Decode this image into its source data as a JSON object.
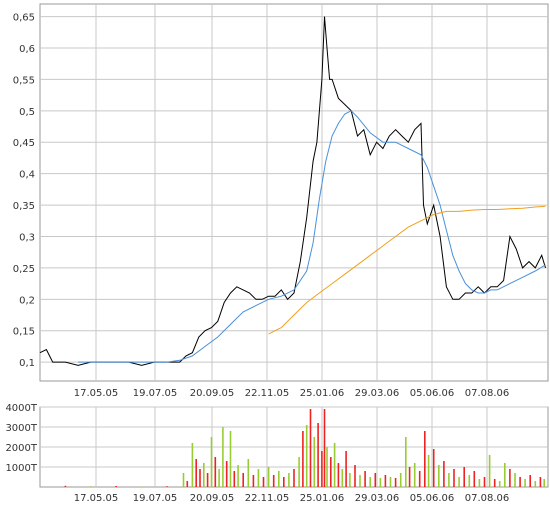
{
  "chart_data": [
    {
      "type": "line",
      "title": "",
      "xlabel": "",
      "ylabel": "",
      "ylim": [
        0.07,
        0.67
      ],
      "y_ticks": [
        "0,1",
        "0,15",
        "0,2",
        "0,25",
        "0,3",
        "0,35",
        "0,4",
        "0,45",
        "0,5",
        "0,55",
        "0,6",
        "0,65"
      ],
      "x_tick_labels": [
        "17.05.05",
        "19.07.05",
        "20.09.05",
        "22.11.05",
        "25.01.06",
        "29.03.06",
        "05.06.06",
        "07.08.06"
      ],
      "grid": true,
      "colors": {
        "price": "#000000",
        "short_ma": "#4a90d9",
        "long_ma": "#f0a020",
        "grid": "#c8c8c8"
      },
      "series": [
        {
          "name": "",
          "color": "#000000",
          "points": [
            [
              0,
              0.115
            ],
            [
              5,
              0.12
            ],
            [
              10,
              0.1
            ],
            [
              20,
              0.1
            ],
            [
              30,
              0.095
            ],
            [
              40,
              0.1
            ],
            [
              50,
              0.1
            ],
            [
              60,
              0.1
            ],
            [
              70,
              0.1
            ],
            [
              80,
              0.095
            ],
            [
              90,
              0.1
            ],
            [
              100,
              0.1
            ],
            [
              110,
              0.1
            ],
            [
              115,
              0.11
            ],
            [
              120,
              0.115
            ],
            [
              125,
              0.14
            ],
            [
              130,
              0.15
            ],
            [
              135,
              0.155
            ],
            [
              140,
              0.165
            ],
            [
              145,
              0.195
            ],
            [
              150,
              0.21
            ],
            [
              155,
              0.22
            ],
            [
              160,
              0.215
            ],
            [
              165,
              0.21
            ],
            [
              170,
              0.2
            ],
            [
              175,
              0.2
            ],
            [
              180,
              0.205
            ],
            [
              185,
              0.205
            ],
            [
              190,
              0.215
            ],
            [
              195,
              0.2
            ],
            [
              200,
              0.21
            ],
            [
              205,
              0.26
            ],
            [
              210,
              0.33
            ],
            [
              215,
              0.42
            ],
            [
              218,
              0.45
            ],
            [
              220,
              0.5
            ],
            [
              222,
              0.55
            ],
            [
              224,
              0.65
            ],
            [
              226,
              0.6
            ],
            [
              228,
              0.55
            ],
            [
              230,
              0.55
            ],
            [
              235,
              0.52
            ],
            [
              240,
              0.51
            ],
            [
              245,
              0.5
            ],
            [
              250,
              0.46
            ],
            [
              255,
              0.47
            ],
            [
              260,
              0.43
            ],
            [
              265,
              0.45
            ],
            [
              270,
              0.44
            ],
            [
              275,
              0.46
            ],
            [
              280,
              0.47
            ],
            [
              285,
              0.46
            ],
            [
              290,
              0.45
            ],
            [
              295,
              0.47
            ],
            [
              300,
              0.48
            ],
            [
              302,
              0.35
            ],
            [
              305,
              0.32
            ],
            [
              310,
              0.35
            ],
            [
              315,
              0.3
            ],
            [
              320,
              0.22
            ],
            [
              325,
              0.2
            ],
            [
              330,
              0.2
            ],
            [
              335,
              0.21
            ],
            [
              340,
              0.21
            ],
            [
              345,
              0.22
            ],
            [
              350,
              0.21
            ],
            [
              355,
              0.22
            ],
            [
              360,
              0.22
            ],
            [
              365,
              0.23
            ],
            [
              370,
              0.3
            ],
            [
              375,
              0.28
            ],
            [
              380,
              0.25
            ],
            [
              385,
              0.26
            ],
            [
              390,
              0.25
            ],
            [
              395,
              0.27
            ],
            [
              398,
              0.25
            ]
          ]
        },
        {
          "name": "",
          "color": "#4a90d9",
          "points": [
            [
              30,
              0.1
            ],
            [
              60,
              0.1
            ],
            [
              100,
              0.1
            ],
            [
              110,
              0.103
            ],
            [
              120,
              0.11
            ],
            [
              130,
              0.125
            ],
            [
              140,
              0.14
            ],
            [
              150,
              0.16
            ],
            [
              160,
              0.18
            ],
            [
              170,
              0.19
            ],
            [
              180,
              0.2
            ],
            [
              190,
              0.205
            ],
            [
              200,
              0.215
            ],
            [
              210,
              0.245
            ],
            [
              215,
              0.29
            ],
            [
              220,
              0.36
            ],
            [
              225,
              0.42
            ],
            [
              230,
              0.46
            ],
            [
              235,
              0.48
            ],
            [
              240,
              0.495
            ],
            [
              245,
              0.5
            ],
            [
              250,
              0.49
            ],
            [
              260,
              0.465
            ],
            [
              270,
              0.45
            ],
            [
              280,
              0.45
            ],
            [
              290,
              0.44
            ],
            [
              300,
              0.43
            ],
            [
              305,
              0.41
            ],
            [
              310,
              0.38
            ],
            [
              315,
              0.35
            ],
            [
              320,
              0.31
            ],
            [
              325,
              0.27
            ],
            [
              330,
              0.245
            ],
            [
              335,
              0.225
            ],
            [
              340,
              0.215
            ],
            [
              345,
              0.21
            ],
            [
              350,
              0.21
            ],
            [
              355,
              0.215
            ],
            [
              360,
              0.215
            ],
            [
              370,
              0.225
            ],
            [
              380,
              0.235
            ],
            [
              390,
              0.245
            ],
            [
              398,
              0.255
            ]
          ]
        },
        {
          "name": "",
          "color": "#f0a020",
          "points": [
            [
              180,
              0.145
            ],
            [
              190,
              0.155
            ],
            [
              200,
              0.175
            ],
            [
              210,
              0.195
            ],
            [
              220,
              0.21
            ],
            [
              230,
              0.225
            ],
            [
              240,
              0.24
            ],
            [
              250,
              0.255
            ],
            [
              260,
              0.27
            ],
            [
              270,
              0.285
            ],
            [
              280,
              0.3
            ],
            [
              290,
              0.315
            ],
            [
              300,
              0.325
            ],
            [
              310,
              0.335
            ],
            [
              320,
              0.34
            ],
            [
              330,
              0.34
            ],
            [
              340,
              0.342
            ],
            [
              350,
              0.343
            ],
            [
              360,
              0.343
            ],
            [
              370,
              0.344
            ],
            [
              380,
              0.345
            ],
            [
              390,
              0.347
            ],
            [
              398,
              0.348
            ]
          ]
        }
      ]
    },
    {
      "type": "bar",
      "title": "",
      "xlabel": "",
      "ylabel": "",
      "ylim": [
        0,
        4000
      ],
      "y_ticks": [
        "1000T",
        "2000T",
        "3000T",
        "4000T"
      ],
      "x_tick_labels": [
        "17.05.05",
        "19.07.05",
        "20.09.05",
        "22.11.05",
        "25.01.06",
        "29.03.06",
        "05.06.06",
        "07.08.06"
      ],
      "grid": true,
      "colors": {
        "up": "#99cc33",
        "down": "#ee2222"
      },
      "bars": [
        {
          "x": 20,
          "value": 60,
          "color": "#ee2222"
        },
        {
          "x": 40,
          "value": 40,
          "color": "#99cc33"
        },
        {
          "x": 60,
          "value": 50,
          "color": "#ee2222"
        },
        {
          "x": 80,
          "value": 30,
          "color": "#99cc33"
        },
        {
          "x": 100,
          "value": 40,
          "color": "#ee2222"
        },
        {
          "x": 113,
          "value": 700,
          "color": "#99cc33"
        },
        {
          "x": 116,
          "value": 300,
          "color": "#ee2222"
        },
        {
          "x": 120,
          "value": 2200,
          "color": "#99cc33"
        },
        {
          "x": 123,
          "value": 1400,
          "color": "#ee2222"
        },
        {
          "x": 126,
          "value": 900,
          "color": "#ee2222"
        },
        {
          "x": 129,
          "value": 1200,
          "color": "#99cc33"
        },
        {
          "x": 132,
          "value": 700,
          "color": "#ee2222"
        },
        {
          "x": 135,
          "value": 2500,
          "color": "#99cc33"
        },
        {
          "x": 138,
          "value": 1500,
          "color": "#ee2222"
        },
        {
          "x": 141,
          "value": 900,
          "color": "#99cc33"
        },
        {
          "x": 144,
          "value": 3000,
          "color": "#99cc33"
        },
        {
          "x": 147,
          "value": 1300,
          "color": "#ee2222"
        },
        {
          "x": 150,
          "value": 2800,
          "color": "#99cc33"
        },
        {
          "x": 153,
          "value": 800,
          "color": "#ee2222"
        },
        {
          "x": 156,
          "value": 1100,
          "color": "#99cc33"
        },
        {
          "x": 160,
          "value": 700,
          "color": "#ee2222"
        },
        {
          "x": 164,
          "value": 1400,
          "color": "#99cc33"
        },
        {
          "x": 168,
          "value": 600,
          "color": "#ee2222"
        },
        {
          "x": 172,
          "value": 900,
          "color": "#99cc33"
        },
        {
          "x": 176,
          "value": 500,
          "color": "#ee2222"
        },
        {
          "x": 180,
          "value": 1000,
          "color": "#99cc33"
        },
        {
          "x": 184,
          "value": 600,
          "color": "#ee2222"
        },
        {
          "x": 188,
          "value": 800,
          "color": "#99cc33"
        },
        {
          "x": 192,
          "value": 500,
          "color": "#ee2222"
        },
        {
          "x": 196,
          "value": 700,
          "color": "#99cc33"
        },
        {
          "x": 200,
          "value": 900,
          "color": "#ee2222"
        },
        {
          "x": 204,
          "value": 1500,
          "color": "#99cc33"
        },
        {
          "x": 207,
          "value": 2800,
          "color": "#ee2222"
        },
        {
          "x": 210,
          "value": 3100,
          "color": "#99cc33"
        },
        {
          "x": 213,
          "value": 3900,
          "color": "#ee2222"
        },
        {
          "x": 216,
          "value": 2500,
          "color": "#99cc33"
        },
        {
          "x": 219,
          "value": 3200,
          "color": "#ee2222"
        },
        {
          "x": 222,
          "value": 1800,
          "color": "#ee2222"
        },
        {
          "x": 224,
          "value": 3900,
          "color": "#ee2222"
        },
        {
          "x": 226,
          "value": 2000,
          "color": "#99cc33"
        },
        {
          "x": 229,
          "value": 1500,
          "color": "#ee2222"
        },
        {
          "x": 232,
          "value": 2200,
          "color": "#99cc33"
        },
        {
          "x": 235,
          "value": 1200,
          "color": "#ee2222"
        },
        {
          "x": 238,
          "value": 900,
          "color": "#99cc33"
        },
        {
          "x": 241,
          "value": 1800,
          "color": "#ee2222"
        },
        {
          "x": 244,
          "value": 700,
          "color": "#99cc33"
        },
        {
          "x": 248,
          "value": 1100,
          "color": "#ee2222"
        },
        {
          "x": 252,
          "value": 600,
          "color": "#99cc33"
        },
        {
          "x": 256,
          "value": 800,
          "color": "#ee2222"
        },
        {
          "x": 260,
          "value": 500,
          "color": "#99cc33"
        },
        {
          "x": 264,
          "value": 700,
          "color": "#ee2222"
        },
        {
          "x": 268,
          "value": 450,
          "color": "#99cc33"
        },
        {
          "x": 272,
          "value": 600,
          "color": "#ee2222"
        },
        {
          "x": 276,
          "value": 500,
          "color": "#99cc33"
        },
        {
          "x": 280,
          "value": 450,
          "color": "#ee2222"
        },
        {
          "x": 284,
          "value": 700,
          "color": "#99cc33"
        },
        {
          "x": 288,
          "value": 2500,
          "color": "#99cc33"
        },
        {
          "x": 291,
          "value": 1000,
          "color": "#ee2222"
        },
        {
          "x": 295,
          "value": 1200,
          "color": "#99cc33"
        },
        {
          "x": 299,
          "value": 800,
          "color": "#ee2222"
        },
        {
          "x": 303,
          "value": 2800,
          "color": "#ee2222"
        },
        {
          "x": 306,
          "value": 1600,
          "color": "#99cc33"
        },
        {
          "x": 310,
          "value": 1900,
          "color": "#ee2222"
        },
        {
          "x": 314,
          "value": 1100,
          "color": "#99cc33"
        },
        {
          "x": 318,
          "value": 1300,
          "color": "#ee2222"
        },
        {
          "x": 322,
          "value": 700,
          "color": "#99cc33"
        },
        {
          "x": 326,
          "value": 900,
          "color": "#ee2222"
        },
        {
          "x": 330,
          "value": 500,
          "color": "#99cc33"
        },
        {
          "x": 334,
          "value": 1000,
          "color": "#ee2222"
        },
        {
          "x": 338,
          "value": 600,
          "color": "#99cc33"
        },
        {
          "x": 342,
          "value": 800,
          "color": "#ee2222"
        },
        {
          "x": 346,
          "value": 400,
          "color": "#99cc33"
        },
        {
          "x": 350,
          "value": 500,
          "color": "#ee2222"
        },
        {
          "x": 354,
          "value": 1600,
          "color": "#99cc33"
        },
        {
          "x": 358,
          "value": 400,
          "color": "#ee2222"
        },
        {
          "x": 362,
          "value": 300,
          "color": "#99cc33"
        },
        {
          "x": 366,
          "value": 1200,
          "color": "#99cc33"
        },
        {
          "x": 370,
          "value": 900,
          "color": "#ee2222"
        },
        {
          "x": 374,
          "value": 700,
          "color": "#99cc33"
        },
        {
          "x": 378,
          "value": 500,
          "color": "#ee2222"
        },
        {
          "x": 382,
          "value": 400,
          "color": "#99cc33"
        },
        {
          "x": 386,
          "value": 600,
          "color": "#ee2222"
        },
        {
          "x": 390,
          "value": 300,
          "color": "#99cc33"
        },
        {
          "x": 394,
          "value": 500,
          "color": "#ee2222"
        },
        {
          "x": 397,
          "value": 400,
          "color": "#99cc33"
        }
      ]
    }
  ]
}
